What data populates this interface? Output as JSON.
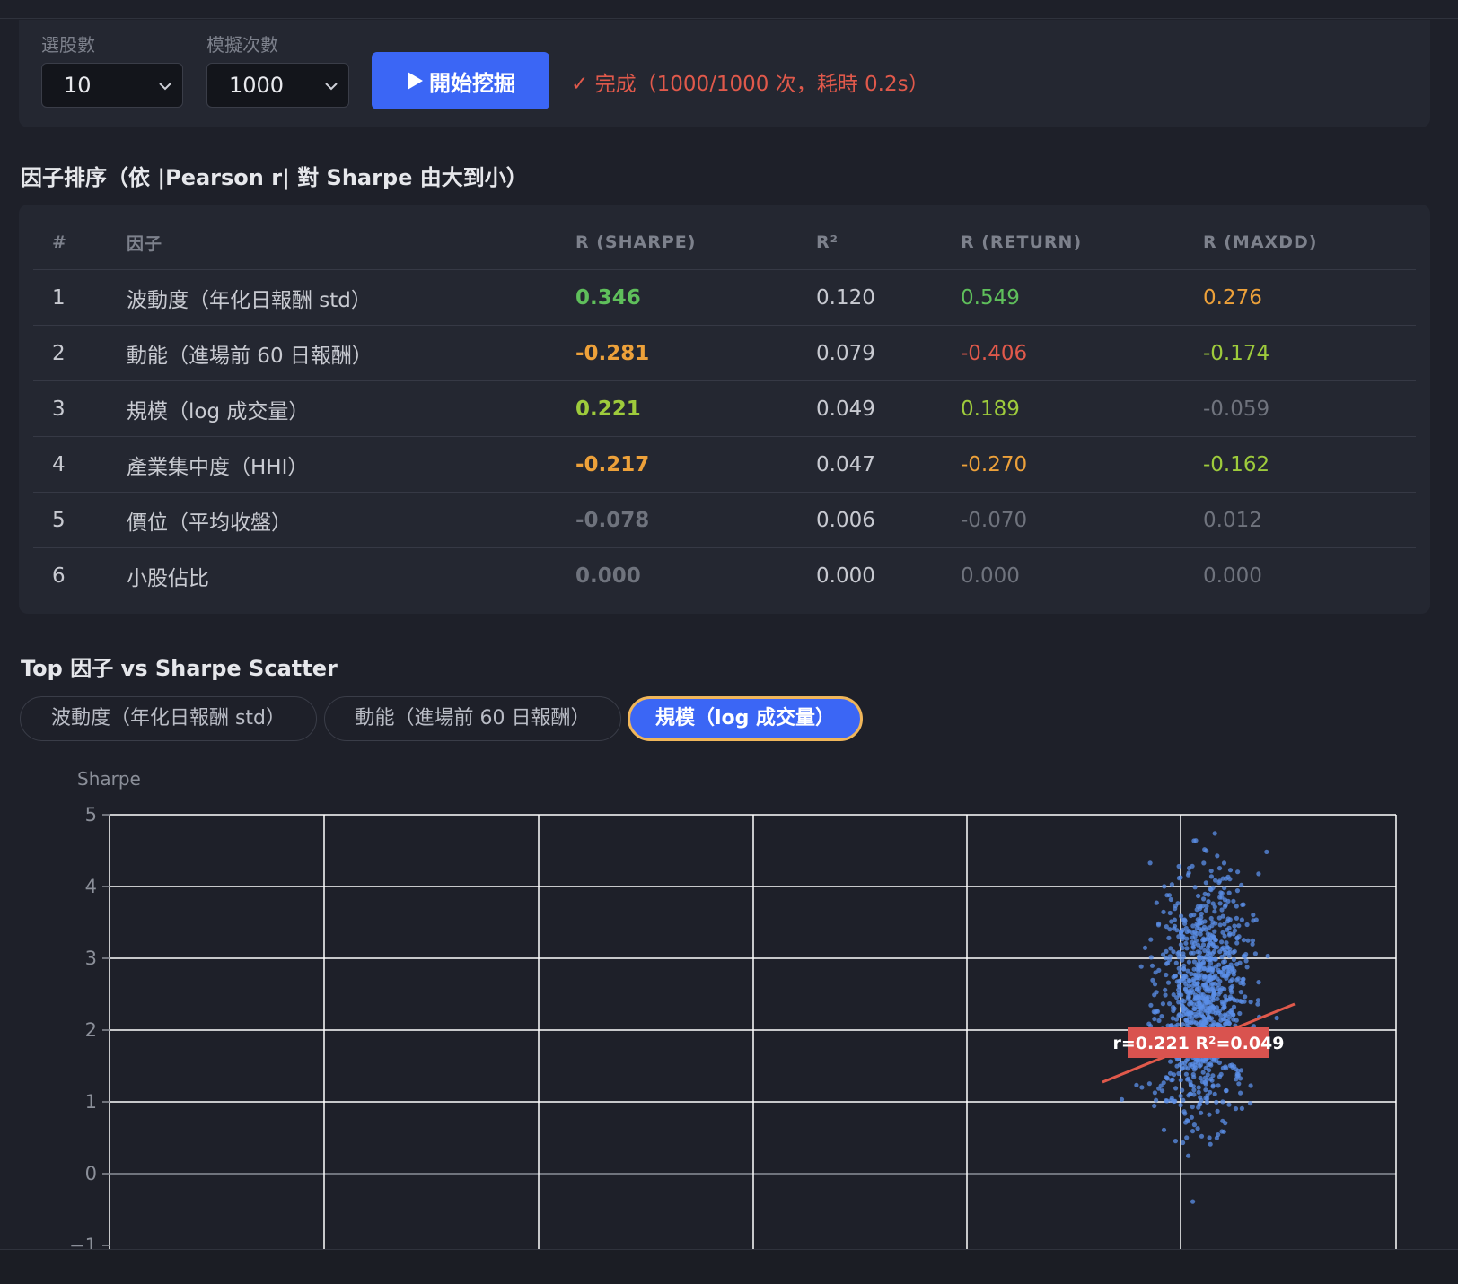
{
  "controls": {
    "stock_count_label": "選股數",
    "stock_count_value": "10",
    "sim_count_label": "模擬次數",
    "sim_count_value": "1000",
    "run_button_label": "開始挖掘",
    "status_text": "✓ 完成（1000/1000 次，耗時 0.2s）"
  },
  "ranking": {
    "title": "因子排序（依 |Pearson r| 對 Sharpe 由大到小）",
    "headers": [
      "#",
      "因子",
      "R (SHARPE)",
      "R²",
      "R (RETURN)",
      "R (MAXDD)"
    ],
    "rows": [
      {
        "rank": "1",
        "factor": "波動度（年化日報酬 std）",
        "r_sharpe": "0.346",
        "r2": "0.120",
        "r_return": "0.549",
        "r_maxdd": "0.276"
      },
      {
        "rank": "2",
        "factor": "動能（進場前 60 日報酬）",
        "r_sharpe": "-0.281",
        "r2": "0.079",
        "r_return": "-0.406",
        "r_maxdd": "-0.174"
      },
      {
        "rank": "3",
        "factor": "規模（log 成交量）",
        "r_sharpe": "0.221",
        "r2": "0.049",
        "r_return": "0.189",
        "r_maxdd": "-0.059"
      },
      {
        "rank": "4",
        "factor": "產業集中度（HHI）",
        "r_sharpe": "-0.217",
        "r2": "0.047",
        "r_return": "-0.270",
        "r_maxdd": "-0.162"
      },
      {
        "rank": "5",
        "factor": "價位（平均收盤）",
        "r_sharpe": "-0.078",
        "r2": "0.006",
        "r_return": "-0.070",
        "r_maxdd": "0.012"
      },
      {
        "rank": "6",
        "factor": "小股佔比",
        "r_sharpe": "0.000",
        "r2": "0.000",
        "r_return": "0.000",
        "r_maxdd": "0.000"
      }
    ],
    "colors": {
      "strong_pos": "#5fbf5b",
      "pos": "#9ecb3c",
      "neg_orange": "#eda13a",
      "neg_red": "#e0594b",
      "muted": "#6f737d",
      "neutral": "#c8cad1"
    }
  },
  "scatter_section": {
    "title": "Top 因子 vs Sharpe Scatter",
    "tabs": [
      {
        "label": "波動度（年化日報酬 std）",
        "active": false
      },
      {
        "label": "動能（進場前 60 日報酬）",
        "active": false
      },
      {
        "label": "規模（log 成交量）",
        "active": true
      }
    ]
  },
  "chart_data": {
    "type": "scatter",
    "ylabel": "Sharpe",
    "yticks": [
      "5",
      "4",
      "3",
      "2",
      "1",
      "0",
      "−1"
    ],
    "ylim": [
      -1,
      5
    ],
    "grid": true,
    "annotation": "r=0.221  R²=0.049",
    "point_color": "#5b8fe8",
    "trend_color": "#e0594b"
  }
}
